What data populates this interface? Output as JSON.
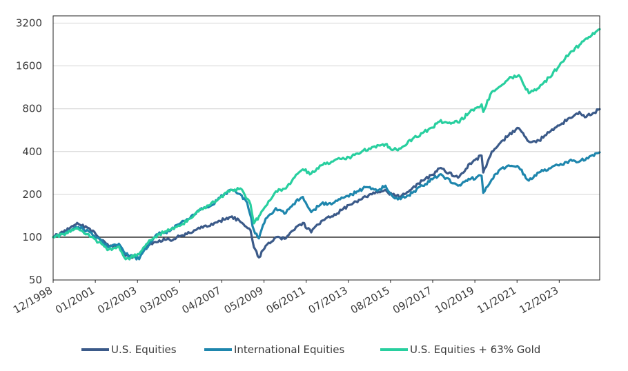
{
  "chart_data": {
    "type": "line",
    "y_scale": "log2",
    "ylim": [
      50,
      3600
    ],
    "y_ticks": [
      50,
      100,
      200,
      400,
      800,
      1600,
      3200
    ],
    "y_tick_labels": [
      "50",
      "100",
      "200",
      "400",
      "800",
      "1600",
      "3200"
    ],
    "x_range": [
      "12/1998",
      "12/2025"
    ],
    "x_tick_labels": [
      "12/1998",
      "01/2001",
      "02/2003",
      "03/2005",
      "04/2007",
      "05/2009",
      "06/2011",
      "07/2013",
      "08/2015",
      "09/2017",
      "10/2019",
      "11/2021",
      "12/2023"
    ],
    "grid": "horizontal",
    "legend_position": "bottom",
    "series": [
      {
        "name": "U.S. Equities",
        "color": "#3b5a89",
        "points": [
          [
            "12/1998",
            100
          ],
          [
            "06/1999",
            108
          ],
          [
            "12/1999",
            120
          ],
          [
            "03/2000",
            124
          ],
          [
            "09/2000",
            116
          ],
          [
            "03/2001",
            100
          ],
          [
            "09/2001",
            86
          ],
          [
            "03/2002",
            88
          ],
          [
            "07/2002",
            74
          ],
          [
            "10/2002",
            72
          ],
          [
            "03/2003",
            76
          ],
          [
            "09/2003",
            88
          ],
          [
            "03/2004",
            95
          ],
          [
            "09/2004",
            96
          ],
          [
            "03/2005",
            101
          ],
          [
            "09/2005",
            107
          ],
          [
            "03/2006",
            115
          ],
          [
            "09/2006",
            120
          ],
          [
            "03/2007",
            130
          ],
          [
            "10/2007",
            140
          ],
          [
            "03/2008",
            128
          ],
          [
            "09/2008",
            112
          ],
          [
            "11/2008",
            85
          ],
          [
            "02/2009",
            72
          ],
          [
            "06/2009",
            87
          ],
          [
            "12/2009",
            100
          ],
          [
            "06/2010",
            98
          ],
          [
            "12/2010",
            118
          ],
          [
            "04/2011",
            126
          ],
          [
            "09/2011",
            108
          ],
          [
            "03/2012",
            130
          ],
          [
            "09/2012",
            140
          ],
          [
            "03/2013",
            155
          ],
          [
            "09/2013",
            170
          ],
          [
            "03/2014",
            185
          ],
          [
            "09/2014",
            200
          ],
          [
            "05/2015",
            215
          ],
          [
            "09/2015",
            198
          ],
          [
            "02/2016",
            192
          ],
          [
            "09/2016",
            222
          ],
          [
            "03/2017",
            250
          ],
          [
            "09/2017",
            275
          ],
          [
            "01/2018",
            305
          ],
          [
            "12/2018",
            262
          ],
          [
            "07/2019",
            330
          ],
          [
            "02/2020",
            375
          ],
          [
            "03/2020",
            285
          ],
          [
            "08/2020",
            400
          ],
          [
            "01/2021",
            460
          ],
          [
            "06/2021",
            520
          ],
          [
            "12/2021",
            585
          ],
          [
            "06/2022",
            470
          ],
          [
            "12/2022",
            478
          ],
          [
            "06/2023",
            545
          ],
          [
            "12/2023",
            610
          ],
          [
            "06/2024",
            690
          ],
          [
            "12/2024",
            760
          ],
          [
            "04/2025",
            700
          ],
          [
            "12/2025",
            795
          ]
        ]
      },
      {
        "name": "International Equities",
        "color": "#1e86ad",
        "points": [
          [
            "12/1998",
            100
          ],
          [
            "06/1999",
            106
          ],
          [
            "12/1999",
            115
          ],
          [
            "03/2000",
            118
          ],
          [
            "09/2000",
            110
          ],
          [
            "03/2001",
            98
          ],
          [
            "09/2001",
            85
          ],
          [
            "03/2002",
            90
          ],
          [
            "07/2002",
            76
          ],
          [
            "03/2003",
            70
          ],
          [
            "09/2003",
            90
          ],
          [
            "03/2004",
            108
          ],
          [
            "09/2004",
            110
          ],
          [
            "03/2005",
            124
          ],
          [
            "09/2005",
            135
          ],
          [
            "03/2006",
            155
          ],
          [
            "09/2006",
            165
          ],
          [
            "03/2007",
            190
          ],
          [
            "10/2007",
            215
          ],
          [
            "03/2008",
            200
          ],
          [
            "07/2008",
            175
          ],
          [
            "11/2008",
            112
          ],
          [
            "02/2009",
            98
          ],
          [
            "06/2009",
            135
          ],
          [
            "12/2009",
            160
          ],
          [
            "06/2010",
            148
          ],
          [
            "12/2010",
            180
          ],
          [
            "04/2011",
            192
          ],
          [
            "09/2011",
            150
          ],
          [
            "03/2012",
            172
          ],
          [
            "09/2012",
            170
          ],
          [
            "03/2013",
            190
          ],
          [
            "09/2013",
            200
          ],
          [
            "06/2014",
            225
          ],
          [
            "12/2014",
            212
          ],
          [
            "05/2015",
            230
          ],
          [
            "09/2015",
            195
          ],
          [
            "02/2016",
            185
          ],
          [
            "09/2016",
            205
          ],
          [
            "03/2017",
            230
          ],
          [
            "01/2018",
            275
          ],
          [
            "12/2018",
            230
          ],
          [
            "07/2019",
            255
          ],
          [
            "02/2020",
            270
          ],
          [
            "03/2020",
            205
          ],
          [
            "08/2020",
            255
          ],
          [
            "01/2021",
            300
          ],
          [
            "06/2021",
            320
          ],
          [
            "12/2021",
            310
          ],
          [
            "06/2022",
            250
          ],
          [
            "12/2022",
            285
          ],
          [
            "06/2023",
            305
          ],
          [
            "12/2023",
            320
          ],
          [
            "06/2024",
            345
          ],
          [
            "12/2024",
            340
          ],
          [
            "06/2025",
            370
          ],
          [
            "12/2025",
            395
          ]
        ]
      },
      {
        "name": "U.S. Equities + 63% Gold",
        "color": "#28cf9f",
        "points": [
          [
            "12/1998",
            100
          ],
          [
            "06/1999",
            105
          ],
          [
            "12/1999",
            112
          ],
          [
            "03/2000",
            114
          ],
          [
            "09/2000",
            105
          ],
          [
            "03/2001",
            92
          ],
          [
            "09/2001",
            82
          ],
          [
            "03/2002",
            86
          ],
          [
            "07/2002",
            70
          ],
          [
            "10/2002",
            72
          ],
          [
            "03/2003",
            76
          ],
          [
            "09/2003",
            95
          ],
          [
            "03/2004",
            105
          ],
          [
            "09/2004",
            112
          ],
          [
            "03/2005",
            120
          ],
          [
            "09/2005",
            135
          ],
          [
            "03/2006",
            158
          ],
          [
            "09/2006",
            168
          ],
          [
            "03/2007",
            190
          ],
          [
            "10/2007",
            215
          ],
          [
            "03/2008",
            220
          ],
          [
            "09/2008",
            170
          ],
          [
            "11/2008",
            125
          ],
          [
            "02/2009",
            140
          ],
          [
            "06/2009",
            165
          ],
          [
            "12/2009",
            210
          ],
          [
            "06/2010",
            220
          ],
          [
            "12/2010",
            275
          ],
          [
            "04/2011",
            300
          ],
          [
            "09/2011",
            280
          ],
          [
            "03/2012",
            320
          ],
          [
            "09/2012",
            340
          ],
          [
            "03/2013",
            355
          ],
          [
            "09/2013",
            370
          ],
          [
            "03/2014",
            400
          ],
          [
            "09/2014",
            430
          ],
          [
            "05/2015",
            450
          ],
          [
            "09/2015",
            410
          ],
          [
            "02/2016",
            420
          ],
          [
            "09/2016",
            490
          ],
          [
            "03/2017",
            540
          ],
          [
            "09/2017",
            590
          ],
          [
            "01/2018",
            650
          ],
          [
            "12/2018",
            640
          ],
          [
            "07/2019",
            760
          ],
          [
            "02/2020",
            860
          ],
          [
            "03/2020",
            760
          ],
          [
            "08/2020",
            1050
          ],
          [
            "01/2021",
            1150
          ],
          [
            "06/2021",
            1300
          ],
          [
            "12/2021",
            1380
          ],
          [
            "06/2022",
            1030
          ],
          [
            "12/2022",
            1120
          ],
          [
            "06/2023",
            1330
          ],
          [
            "12/2023",
            1600
          ],
          [
            "06/2024",
            1950
          ],
          [
            "12/2024",
            2250
          ],
          [
            "04/2025",
            2500
          ],
          [
            "12/2025",
            2900
          ]
        ]
      }
    ]
  }
}
